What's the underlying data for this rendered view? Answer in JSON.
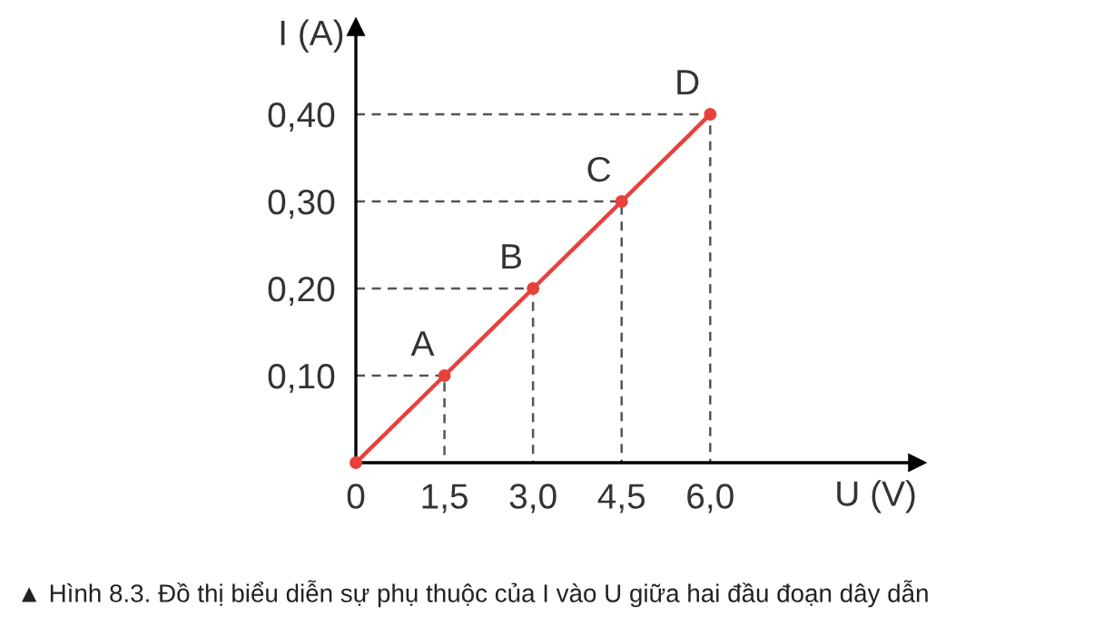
{
  "chart_data": {
    "type": "line",
    "xlabel": "U (V)",
    "ylabel": "I (A)",
    "xlim": [
      0,
      9.5
    ],
    "ylim": [
      0,
      0.5
    ],
    "xticks": [
      {
        "value": 0,
        "label": "0"
      },
      {
        "value": 1.5,
        "label": "1,5"
      },
      {
        "value": 3.0,
        "label": "3,0"
      },
      {
        "value": 4.5,
        "label": "4,5"
      },
      {
        "value": 6.0,
        "label": "6,0"
      }
    ],
    "yticks": [
      {
        "value": 0.1,
        "label": "0,10"
      },
      {
        "value": 0.2,
        "label": "0,20"
      },
      {
        "value": 0.3,
        "label": "0,30"
      },
      {
        "value": 0.4,
        "label": "0,40"
      }
    ],
    "grid": false,
    "legend": false,
    "series": [
      {
        "color": "#e8413c",
        "x": [
          0,
          1.5,
          3.0,
          4.5,
          6.0
        ],
        "values": [
          0,
          0.1,
          0.2,
          0.3,
          0.4
        ],
        "marker": "circle",
        "line_style": "solid"
      },
      {
        "color": "#555555",
        "x": [
          0,
          1.5,
          1.5
        ],
        "values": [
          0.1,
          0.1,
          0
        ],
        "line_style": "dashed",
        "marker": "none"
      },
      {
        "color": "#555555",
        "x": [
          0,
          3.0,
          3.0
        ],
        "values": [
          0.2,
          0.2,
          0
        ],
        "line_style": "dashed",
        "marker": "none"
      },
      {
        "color": "#555555",
        "x": [
          0,
          4.5,
          4.5
        ],
        "values": [
          0.3,
          0.3,
          0
        ],
        "line_style": "dashed",
        "marker": "none"
      },
      {
        "color": "#555555",
        "x": [
          0,
          6.0,
          6.0
        ],
        "values": [
          0.4,
          0.4,
          0
        ],
        "line_style": "dashed",
        "marker": "none"
      }
    ],
    "annotations": [
      {
        "text": "A",
        "x": 1.5,
        "y": 0.1
      },
      {
        "text": "B",
        "x": 3.0,
        "y": 0.2
      },
      {
        "text": "C",
        "x": 4.5,
        "y": 0.3
      },
      {
        "text": "D",
        "x": 6.0,
        "y": 0.4
      },
      "▲ Hình 8.3. Đồ thị biểu diễn sự phụ thuộc của I vào U giữa hai đầu đoạn dây dẫn"
    ]
  }
}
